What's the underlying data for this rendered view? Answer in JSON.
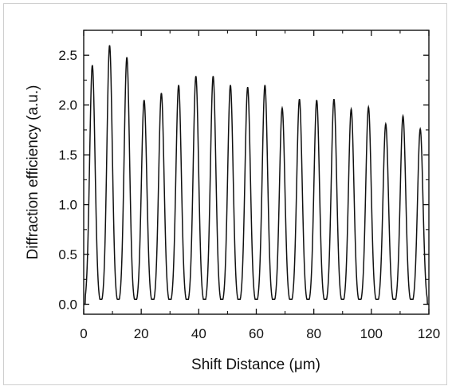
{
  "chart_data": {
    "type": "line",
    "title": "",
    "xlabel": "Shift Distance (μm)",
    "ylabel": "Diffraction efficiency (a.u.)",
    "xlim": [
      0,
      120
    ],
    "ylim": [
      -0.1,
      2.75
    ],
    "x_ticks": [
      "0",
      "20",
      "40",
      "60",
      "80",
      "100",
      "120"
    ],
    "x_tick_values": [
      0,
      20,
      40,
      60,
      80,
      100,
      120
    ],
    "y_ticks": [
      "0.0",
      "0.5",
      "1.0",
      "1.5",
      "2.0",
      "2.5"
    ],
    "y_tick_values": [
      0,
      0.5,
      1.0,
      1.5,
      2.0,
      2.5
    ],
    "grid": false,
    "legend": "none",
    "line_color": "#111111",
    "baseline": 0.05,
    "peak_width_um": 1.5,
    "series": [
      {
        "peaks_x": [
          3,
          9,
          15,
          21,
          27,
          33,
          39,
          45,
          51,
          57,
          63,
          69,
          75,
          81,
          87,
          93,
          99,
          105,
          111,
          117
        ],
        "peaks_y": [
          2.4,
          2.6,
          2.48,
          2.05,
          2.12,
          2.2,
          2.29,
          2.29,
          2.2,
          2.18,
          2.2,
          1.97,
          2.06,
          2.05,
          2.06,
          1.96,
          1.98,
          1.81,
          1.89,
          1.76
        ]
      }
    ]
  }
}
